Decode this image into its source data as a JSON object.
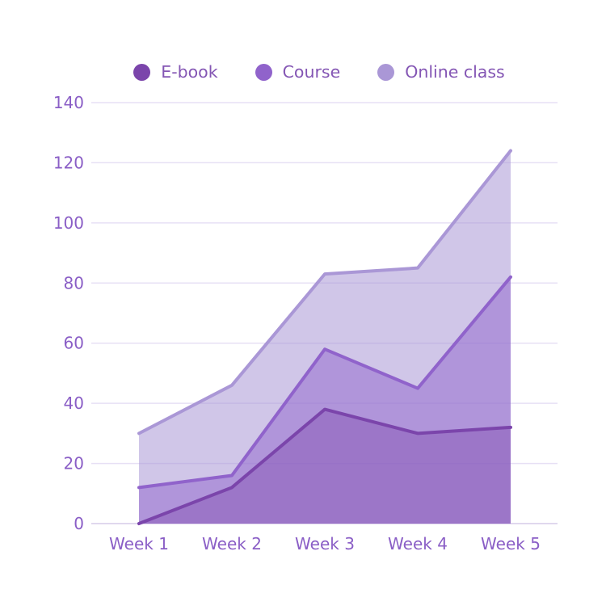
{
  "chart_data": {
    "type": "area",
    "title": "",
    "categories": [
      "Week 1",
      "Week 2",
      "Week 3",
      "Week 4",
      "Week 5"
    ],
    "series": [
      {
        "name": "E-book",
        "values": [
          0,
          12,
          38,
          30,
          32
        ],
        "color": "#7b45ab",
        "fill_opacity": 0.38
      },
      {
        "name": "Course",
        "values": [
          12,
          16,
          58,
          45,
          82
        ],
        "color": "#9063cb",
        "fill_opacity": 0.5
      },
      {
        "name": "Online class",
        "values": [
          30,
          46,
          83,
          85,
          124
        ],
        "color": "#aa97d6",
        "fill_opacity": 0.55
      }
    ],
    "xlabel": "",
    "ylabel": "",
    "ylim": [
      0,
      140
    ],
    "yticks": [
      0,
      20,
      40,
      60,
      80,
      100,
      120,
      140
    ],
    "grid": "horizontal",
    "legend_position": "top"
  },
  "styles": {
    "background": "#ffffff",
    "axis_text_color": "#8a5ec6",
    "legend_text_color": "#8456b4",
    "gridline_color": "#e7e0f5",
    "axisline_color": "#d5cbe8"
  }
}
